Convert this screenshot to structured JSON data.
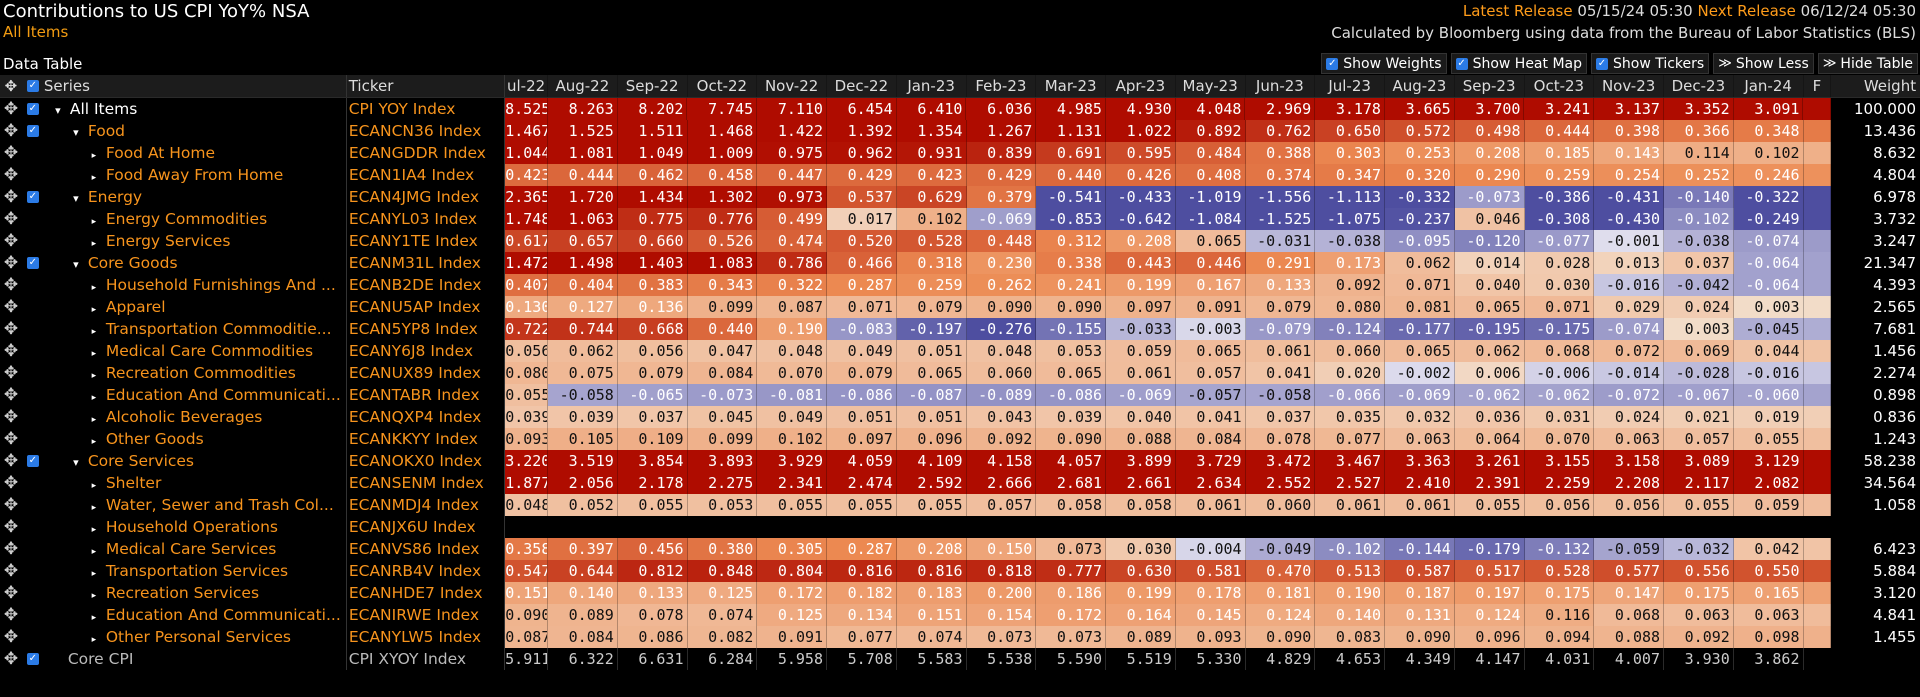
{
  "header": {
    "title": "Contributions to US CPI YoY% NSA",
    "subtitle": "All Items",
    "latest_release_label": "Latest Release",
    "latest_release_value": "05/15/24 05:30",
    "next_release_label": "Next Release",
    "next_release_value": "06/12/24 05:30",
    "calc_note": "Calculated by Bloomberg using data from the Bureau of Labor Statistics (BLS)"
  },
  "toolbar": {
    "data_table_label": "Data Table",
    "show_weights": "Show Weights",
    "show_heat_map": "Show Heat Map",
    "show_tickers": "Show Tickers",
    "show_less": "Show Less",
    "hide_table": "Hide Table"
  },
  "table": {
    "col_series": "Series",
    "col_ticker": "Ticker",
    "col_weight": "Weight",
    "months": [
      "ul-22",
      "Aug-22",
      "Sep-22",
      "Oct-22",
      "Nov-22",
      "Dec-22",
      "Jan-23",
      "Feb-23",
      "Mar-23",
      "Apr-23",
      "May-23",
      "Jun-23",
      "Jul-23",
      "Aug-23",
      "Sep-23",
      "Oct-23",
      "Nov-23",
      "Dec-23",
      "Jan-24",
      "F"
    ],
    "rows": [
      {
        "series": "All Items",
        "ticker": "CPI YOY Index",
        "level": 0,
        "arrow": "▾",
        "checkbox": true,
        "values": [
          "8.525",
          "8.263",
          "8.202",
          "7.745",
          "7.110",
          "6.454",
          "6.410",
          "6.036",
          "4.985",
          "4.930",
          "4.048",
          "2.969",
          "3.178",
          "3.665",
          "3.700",
          "3.241",
          "3.137",
          "3.352",
          "3.091"
        ],
        "weight": "100.000"
      },
      {
        "series": "Food",
        "ticker": "ECANCN36 Index",
        "level": 1,
        "arrow": "▾",
        "checkbox": true,
        "values": [
          "1.467",
          "1.525",
          "1.511",
          "1.468",
          "1.422",
          "1.392",
          "1.354",
          "1.267",
          "1.131",
          "1.022",
          "0.892",
          "0.762",
          "0.650",
          "0.572",
          "0.498",
          "0.444",
          "0.398",
          "0.366",
          "0.348"
        ],
        "weight": "13.436"
      },
      {
        "series": "Food At Home",
        "ticker": "ECANGDDR Index",
        "level": 2,
        "arrow": "▸",
        "checkbox": false,
        "values": [
          "1.044",
          "1.081",
          "1.049",
          "1.009",
          "0.975",
          "0.962",
          "0.931",
          "0.839",
          "0.691",
          "0.595",
          "0.484",
          "0.388",
          "0.303",
          "0.253",
          "0.208",
          "0.185",
          "0.143",
          "0.114",
          "0.102"
        ],
        "weight": "8.632"
      },
      {
        "series": "Food Away From Home",
        "ticker": "ECAN1IA4 Index",
        "level": 2,
        "arrow": "▸",
        "checkbox": false,
        "values": [
          "0.423",
          "0.444",
          "0.462",
          "0.458",
          "0.447",
          "0.429",
          "0.423",
          "0.429",
          "0.440",
          "0.426",
          "0.408",
          "0.374",
          "0.347",
          "0.320",
          "0.290",
          "0.259",
          "0.254",
          "0.252",
          "0.246"
        ],
        "weight": "4.804"
      },
      {
        "series": "Energy",
        "ticker": "ECAN4JMG Index",
        "level": 1,
        "arrow": "▾",
        "checkbox": true,
        "values": [
          "2.365",
          "1.720",
          "1.434",
          "1.302",
          "0.973",
          "0.537",
          "0.629",
          "0.379",
          "-0.541",
          "-0.433",
          "-1.019",
          "-1.556",
          "-1.113",
          "-0.332",
          "-0.073",
          "-0.386",
          "-0.431",
          "-0.140",
          "-0.322"
        ],
        "weight": "6.978"
      },
      {
        "series": "Energy Commodities",
        "ticker": "ECANYL03 Index",
        "level": 2,
        "arrow": "▸",
        "checkbox": false,
        "values": [
          "1.748",
          "1.063",
          "0.775",
          "0.776",
          "0.499",
          "0.017",
          "0.102",
          "-0.069",
          "-0.853",
          "-0.642",
          "-1.084",
          "-1.525",
          "-1.075",
          "-0.237",
          "0.046",
          "-0.308",
          "-0.430",
          "-0.102",
          "-0.249"
        ],
        "weight": "3.732"
      },
      {
        "series": "Energy Services",
        "ticker": "ECANY1TE Index",
        "level": 2,
        "arrow": "▸",
        "checkbox": false,
        "values": [
          "0.617",
          "0.657",
          "0.660",
          "0.526",
          "0.474",
          "0.520",
          "0.528",
          "0.448",
          "0.312",
          "0.208",
          "0.065",
          "-0.031",
          "-0.038",
          "-0.095",
          "-0.120",
          "-0.077",
          "-0.001",
          "-0.038",
          "-0.074"
        ],
        "weight": "3.247"
      },
      {
        "series": "Core Goods",
        "ticker": "ECANM31L Index",
        "level": 1,
        "arrow": "▾",
        "checkbox": true,
        "values": [
          "1.472",
          "1.498",
          "1.403",
          "1.083",
          "0.786",
          "0.466",
          "0.318",
          "0.230",
          "0.338",
          "0.443",
          "0.446",
          "0.291",
          "0.173",
          "0.062",
          "0.014",
          "0.028",
          "0.013",
          "0.037",
          "-0.064"
        ],
        "weight": "21.347"
      },
      {
        "series": "Household Furnishings And ...",
        "ticker": "ECANB2DE Index",
        "level": 2,
        "arrow": "▸",
        "checkbox": false,
        "values": [
          "0.407",
          "0.404",
          "0.383",
          "0.343",
          "0.322",
          "0.287",
          "0.259",
          "0.262",
          "0.241",
          "0.199",
          "0.167",
          "0.133",
          "0.092",
          "0.071",
          "0.040",
          "0.030",
          "-0.016",
          "-0.042",
          "-0.064"
        ],
        "weight": "4.393"
      },
      {
        "series": "Apparel",
        "ticker": "ECANU5AP Index",
        "level": 2,
        "arrow": "▸",
        "checkbox": false,
        "values": [
          "0.130",
          "0.127",
          "0.136",
          "0.099",
          "0.087",
          "0.071",
          "0.079",
          "0.090",
          "0.090",
          "0.097",
          "0.091",
          "0.079",
          "0.080",
          "0.081",
          "0.065",
          "0.071",
          "0.029",
          "0.024",
          "0.003"
        ],
        "weight": "2.565"
      },
      {
        "series": "Transportation Commoditie...",
        "ticker": "ECAN5YP8 Index",
        "level": 2,
        "arrow": "▸",
        "checkbox": false,
        "values": [
          "0.722",
          "0.744",
          "0.668",
          "0.440",
          "0.190",
          "-0.083",
          "-0.197",
          "-0.276",
          "-0.155",
          "-0.033",
          "-0.003",
          "-0.079",
          "-0.124",
          "-0.177",
          "-0.195",
          "-0.175",
          "-0.074",
          "0.003",
          "-0.045"
        ],
        "weight": "7.681"
      },
      {
        "series": "Medical Care Commodities",
        "ticker": "ECANY6J8 Index",
        "level": 2,
        "arrow": "▸",
        "checkbox": false,
        "values": [
          "0.056",
          "0.062",
          "0.056",
          "0.047",
          "0.048",
          "0.049",
          "0.051",
          "0.048",
          "0.053",
          "0.059",
          "0.065",
          "0.061",
          "0.060",
          "0.065",
          "0.062",
          "0.068",
          "0.072",
          "0.069",
          "0.044"
        ],
        "weight": "1.456"
      },
      {
        "series": "Recreation Commodities",
        "ticker": "ECANUX89 Index",
        "level": 2,
        "arrow": "▸",
        "checkbox": false,
        "values": [
          "0.080",
          "0.075",
          "0.079",
          "0.084",
          "0.070",
          "0.079",
          "0.065",
          "0.060",
          "0.065",
          "0.061",
          "0.057",
          "0.041",
          "0.020",
          "-0.002",
          "0.006",
          "-0.006",
          "-0.014",
          "-0.028",
          "-0.016"
        ],
        "weight": "2.274"
      },
      {
        "series": "Education And Communicati...",
        "ticker": "ECANTABR Index",
        "level": 2,
        "arrow": "▸",
        "checkbox": false,
        "values": [
          "0.055",
          "-0.058",
          "-0.065",
          "-0.073",
          "-0.081",
          "-0.086",
          "-0.087",
          "-0.089",
          "-0.086",
          "-0.069",
          "-0.057",
          "-0.058",
          "-0.066",
          "-0.069",
          "-0.062",
          "-0.062",
          "-0.072",
          "-0.067",
          "-0.060"
        ],
        "weight": "0.898"
      },
      {
        "series": "Alcoholic Beverages",
        "ticker": "ECANQXP4 Index",
        "level": 2,
        "arrow": "▸",
        "checkbox": false,
        "values": [
          "0.039",
          "0.039",
          "0.037",
          "0.045",
          "0.049",
          "0.051",
          "0.051",
          "0.043",
          "0.039",
          "0.040",
          "0.041",
          "0.037",
          "0.035",
          "0.032",
          "0.036",
          "0.031",
          "0.024",
          "0.021",
          "0.019"
        ],
        "weight": "0.836"
      },
      {
        "series": "Other Goods",
        "ticker": "ECANKKYY Index",
        "level": 2,
        "arrow": "▸",
        "checkbox": false,
        "values": [
          "0.093",
          "0.105",
          "0.109",
          "0.099",
          "0.102",
          "0.097",
          "0.096",
          "0.092",
          "0.090",
          "0.088",
          "0.084",
          "0.078",
          "0.077",
          "0.063",
          "0.064",
          "0.070",
          "0.063",
          "0.057",
          "0.055"
        ],
        "weight": "1.243"
      },
      {
        "series": "Core Services",
        "ticker": "ECANOKX0 Index",
        "level": 1,
        "arrow": "▾",
        "checkbox": true,
        "values": [
          "3.220",
          "3.519",
          "3.854",
          "3.893",
          "3.929",
          "4.059",
          "4.109",
          "4.158",
          "4.057",
          "3.899",
          "3.729",
          "3.472",
          "3.467",
          "3.363",
          "3.261",
          "3.155",
          "3.158",
          "3.089",
          "3.129"
        ],
        "weight": "58.238"
      },
      {
        "series": "Shelter",
        "ticker": "ECANSENM Index",
        "level": 2,
        "arrow": "▸",
        "checkbox": false,
        "values": [
          "1.877",
          "2.056",
          "2.178",
          "2.275",
          "2.341",
          "2.474",
          "2.592",
          "2.666",
          "2.681",
          "2.661",
          "2.634",
          "2.552",
          "2.527",
          "2.410",
          "2.391",
          "2.259",
          "2.208",
          "2.117",
          "2.082"
        ],
        "weight": "34.564"
      },
      {
        "series": "Water, Sewer and Trash Col...",
        "ticker": "ECANMDJ4 Index",
        "level": 2,
        "arrow": "▸",
        "checkbox": false,
        "values": [
          "0.048",
          "0.052",
          "0.055",
          "0.053",
          "0.055",
          "0.055",
          "0.055",
          "0.057",
          "0.058",
          "0.058",
          "0.061",
          "0.060",
          "0.061",
          "0.061",
          "0.055",
          "0.056",
          "0.056",
          "0.055",
          "0.059"
        ],
        "weight": "1.058"
      },
      {
        "series": "Household Operations",
        "ticker": "ECANJX6U Index",
        "level": 2,
        "arrow": "▸",
        "checkbox": false,
        "values": [
          "",
          "",
          "",
          "",
          "",
          "",
          "",
          "",
          "",
          "",
          "",
          "",
          "",
          "",
          "",
          "",
          "",
          "",
          ""
        ],
        "weight": ""
      },
      {
        "series": "Medical Care Services",
        "ticker": "ECANVS86 Index",
        "level": 2,
        "arrow": "▸",
        "checkbox": false,
        "values": [
          "0.358",
          "0.397",
          "0.456",
          "0.380",
          "0.305",
          "0.287",
          "0.208",
          "0.150",
          "0.073",
          "0.030",
          "-0.004",
          "-0.049",
          "-0.102",
          "-0.144",
          "-0.179",
          "-0.132",
          "-0.059",
          "-0.032",
          "0.042"
        ],
        "weight": "6.423"
      },
      {
        "series": "Transportation Services",
        "ticker": "ECANRB4V Index",
        "level": 2,
        "arrow": "▸",
        "checkbox": false,
        "values": [
          "0.547",
          "0.644",
          "0.812",
          "0.848",
          "0.804",
          "0.816",
          "0.816",
          "0.818",
          "0.777",
          "0.630",
          "0.581",
          "0.470",
          "0.513",
          "0.587",
          "0.517",
          "0.528",
          "0.577",
          "0.556",
          "0.550"
        ],
        "weight": "5.884"
      },
      {
        "series": "Recreation Services",
        "ticker": "ECANHDE7 Index",
        "level": 2,
        "arrow": "▸",
        "checkbox": false,
        "values": [
          "0.151",
          "0.140",
          "0.133",
          "0.125",
          "0.172",
          "0.182",
          "0.183",
          "0.200",
          "0.186",
          "0.199",
          "0.178",
          "0.181",
          "0.190",
          "0.187",
          "0.197",
          "0.175",
          "0.147",
          "0.175",
          "0.165"
        ],
        "weight": "3.120"
      },
      {
        "series": "Education And Communicati...",
        "ticker": "ECANIRWE Index",
        "level": 2,
        "arrow": "▸",
        "checkbox": false,
        "values": [
          "0.090",
          "0.089",
          "0.078",
          "0.074",
          "0.125",
          "0.134",
          "0.151",
          "0.154",
          "0.172",
          "0.164",
          "0.145",
          "0.124",
          "0.140",
          "0.131",
          "0.124",
          "0.116",
          "0.068",
          "0.063",
          "0.063"
        ],
        "weight": "4.841"
      },
      {
        "series": "Other Personal Services",
        "ticker": "ECANYLW5 Index",
        "level": 2,
        "arrow": "▸",
        "checkbox": false,
        "values": [
          "0.087",
          "0.084",
          "0.086",
          "0.082",
          "0.091",
          "0.077",
          "0.074",
          "0.073",
          "0.073",
          "0.089",
          "0.093",
          "0.090",
          "0.083",
          "0.090",
          "0.096",
          "0.094",
          "0.088",
          "0.092",
          "0.098"
        ],
        "weight": "1.455"
      },
      {
        "series": "Core CPI",
        "ticker": "CPI XYOY Index",
        "level": 1,
        "arrow": "",
        "checkbox": true,
        "core": true,
        "values": [
          "5.911",
          "6.322",
          "6.631",
          "6.284",
          "5.958",
          "5.708",
          "5.583",
          "5.538",
          "5.590",
          "5.519",
          "5.330",
          "4.829",
          "4.653",
          "4.349",
          "4.147",
          "4.031",
          "4.007",
          "3.930",
          "3.862"
        ],
        "weight": ""
      }
    ]
  },
  "colors": {
    "accent_orange": "#f7941d",
    "heat_max": "#a80000",
    "heat_neutral": "#f3e3d3",
    "heat_negative": "#5555a8",
    "checkbox_blue": "#2b7be6"
  },
  "icons": {
    "row_handle": "move-icon",
    "collapse": "triangle-down-icon",
    "expand": "triangle-right-icon"
  }
}
